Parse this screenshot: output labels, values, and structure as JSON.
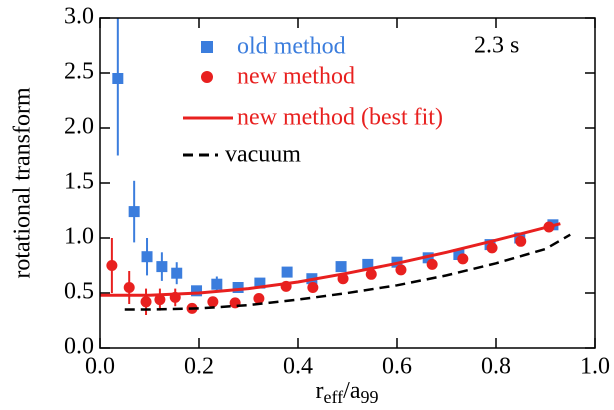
{
  "chart_data": {
    "type": "scatter",
    "ylabel": "rotational transform",
    "xlabel_parts": [
      "r",
      "eff",
      "/a",
      "99"
    ],
    "annotation": "2.3 s",
    "xlim": [
      0,
      1
    ],
    "ylim": [
      0,
      3
    ],
    "xticks": [
      {
        "value": 0,
        "label": "0.0"
      },
      {
        "value": 0.2,
        "label": "0.2"
      },
      {
        "value": 0.4,
        "label": "0.4"
      },
      {
        "value": 0.6,
        "label": "0.6"
      },
      {
        "value": 0.8,
        "label": "0.8"
      },
      {
        "value": 1,
        "label": "1.0"
      }
    ],
    "yticks": [
      {
        "value": 0,
        "label": "0.0"
      },
      {
        "value": 0.5,
        "label": "0.5"
      },
      {
        "value": 1,
        "label": "1.0"
      },
      {
        "value": 1.5,
        "label": "1.5"
      },
      {
        "value": 2,
        "label": "2.0"
      },
      {
        "value": 2.5,
        "label": "2.5"
      },
      {
        "value": 3,
        "label": "3.0"
      }
    ],
    "legend": "upper left",
    "series": [
      {
        "name": "old method",
        "color": "#3b7ddd",
        "kind": "points",
        "marker": "square",
        "x": [
          0.036,
          0.069,
          0.095,
          0.125,
          0.155,
          0.195,
          0.236,
          0.279,
          0.323,
          0.378,
          0.428,
          0.487,
          0.541,
          0.6,
          0.663,
          0.725,
          0.788,
          0.848,
          0.915
        ],
        "values": [
          2.45,
          1.24,
          0.83,
          0.74,
          0.68,
          0.52,
          0.58,
          0.55,
          0.59,
          0.69,
          0.63,
          0.74,
          0.76,
          0.78,
          0.82,
          0.85,
          0.94,
          1.0,
          1.12
        ],
        "errors": [
          0.7,
          0.28,
          0.17,
          0.13,
          0.1,
          null,
          0.07,
          null,
          null,
          null,
          null,
          null,
          null,
          null,
          null,
          null,
          null,
          null,
          null
        ]
      },
      {
        "name": "new method",
        "color": "#e8201f",
        "kind": "points",
        "marker": "circle",
        "x": [
          0.024,
          0.059,
          0.093,
          0.121,
          0.152,
          0.186,
          0.228,
          0.273,
          0.321,
          0.376,
          0.43,
          0.491,
          0.548,
          0.608,
          0.671,
          0.733,
          0.792,
          0.85,
          0.907
        ],
        "values": [
          0.75,
          0.55,
          0.42,
          0.44,
          0.46,
          0.36,
          0.42,
          0.41,
          0.45,
          0.56,
          0.55,
          0.63,
          0.67,
          0.71,
          0.76,
          0.81,
          0.91,
          0.97,
          1.1
        ],
        "errors": [
          0.25,
          0.15,
          0.12,
          0.1,
          0.08,
          null,
          null,
          null,
          null,
          null,
          null,
          null,
          null,
          null,
          null,
          null,
          null,
          null,
          null
        ]
      },
      {
        "name": "new method (best fit)",
        "color": "#e8201f",
        "kind": "line",
        "dash": "solid",
        "x": [
          0,
          0.1,
          0.2,
          0.3,
          0.4,
          0.5,
          0.6,
          0.7,
          0.8,
          0.93
        ],
        "values": [
          0.48,
          0.48,
          0.5,
          0.54,
          0.6,
          0.68,
          0.77,
          0.87,
          0.98,
          1.13
        ]
      },
      {
        "name": "vacuum",
        "color": "#000000",
        "kind": "line",
        "dash": "dashed",
        "x": [
          0.05,
          0.1,
          0.2,
          0.3,
          0.4,
          0.5,
          0.6,
          0.7,
          0.8,
          0.9,
          0.95
        ],
        "values": [
          0.35,
          0.35,
          0.36,
          0.39,
          0.44,
          0.5,
          0.57,
          0.66,
          0.77,
          0.9,
          1.03
        ]
      }
    ]
  }
}
